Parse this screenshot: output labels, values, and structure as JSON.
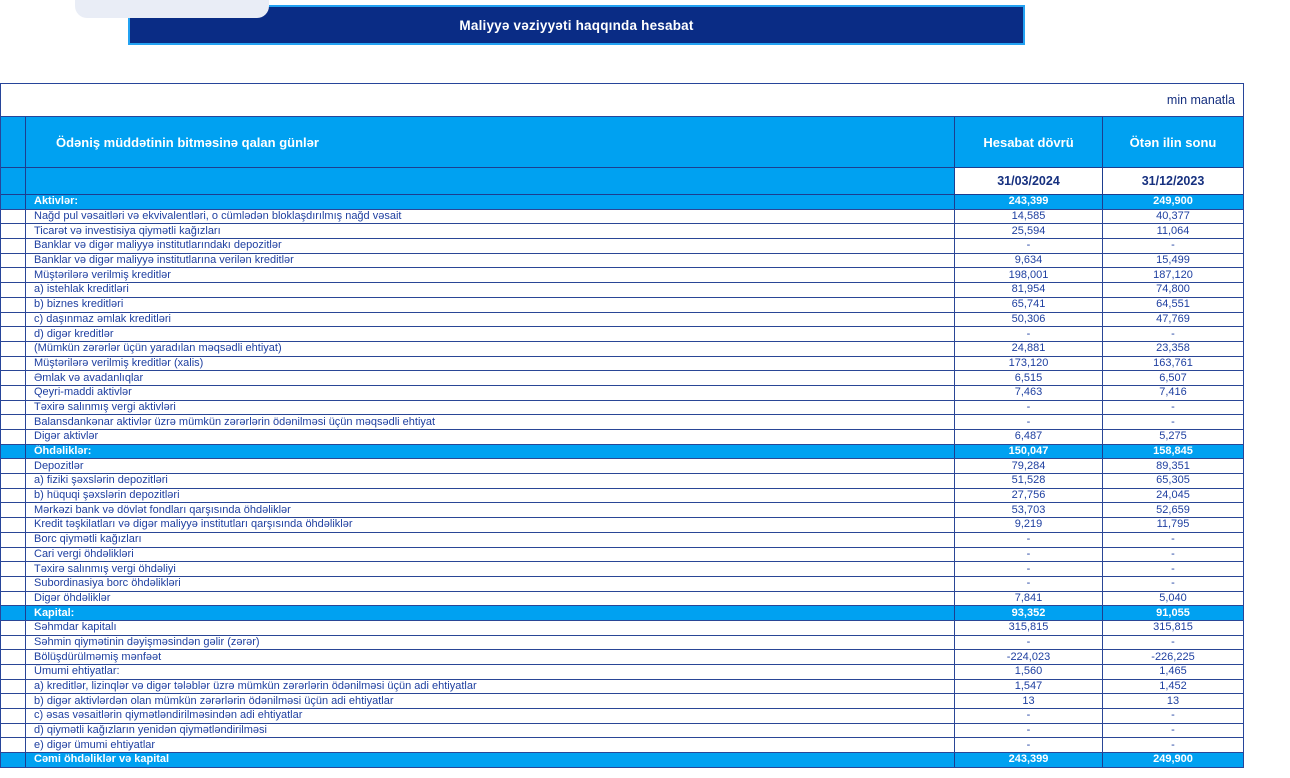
{
  "banner": {
    "title": "Maliyyə vəziyyəti haqqında hesabat"
  },
  "table": {
    "unit_label": "min manatla",
    "header": {
      "label_column": "Ödəniş müddətinin bitməsinə qalan günlər",
      "period_column": "Hesabat dövrü",
      "prev_column": "Ötən ilin sonu",
      "period_date": "31/03/2024",
      "prev_date": "31/12/2023"
    },
    "rows": [
      {
        "type": "section",
        "label": "Aktivlər:",
        "period": "243,399",
        "prev": "249,900"
      },
      {
        "type": "data",
        "label": "Nağd pul vəsaitləri və  ekvivalentləri, o cümlədən bloklaşdırılmış nağd vəsait",
        "period": "14,585",
        "prev": "40,377"
      },
      {
        "type": "data",
        "label": "Ticarət və investisiya qiymətli kağızları",
        "period": "25,594",
        "prev": "11,064"
      },
      {
        "type": "data",
        "label": "Banklar və digər maliyyə institutlarındakı depozitlər",
        "period": "-",
        "prev": "-"
      },
      {
        "type": "data",
        "label": "Banklar və digər maliyyə institutlarına verilən kreditlər",
        "period": "9,634",
        "prev": "15,499"
      },
      {
        "type": "data",
        "label": "Müştərilərə verilmiş kreditlər",
        "period": "198,001",
        "prev": "187,120"
      },
      {
        "type": "data",
        "label": "a) istehlak kreditləri",
        "period": "81,954",
        "prev": "74,800"
      },
      {
        "type": "data",
        "label": "b) biznes kreditləri",
        "period": "65,741",
        "prev": "64,551"
      },
      {
        "type": "data",
        "label": "c) daşınmaz əmlak kreditləri",
        "period": "50,306",
        "prev": "47,769"
      },
      {
        "type": "data",
        "label": "d) digər kreditlər",
        "period": "-",
        "prev": "-"
      },
      {
        "type": "data",
        "label": "(Mümkün zərərlər üçün yaradılan məqsədli ehtiyat)",
        "period": "24,881",
        "prev": "23,358"
      },
      {
        "type": "data",
        "label": "Müştərilərə verilmiş kreditlər (xalis)",
        "period": "173,120",
        "prev": "163,761"
      },
      {
        "type": "data",
        "label": "Əmlak və avadanlıqlar",
        "period": "6,515",
        "prev": "6,507"
      },
      {
        "type": "data",
        "label": "Qeyri-maddi aktivlər",
        "period": "7,463",
        "prev": "7,416"
      },
      {
        "type": "data",
        "label": "Təxirə salınmış vergi aktivləri",
        "period": "-",
        "prev": "-"
      },
      {
        "type": "data",
        "label": "Balansdankənar aktivlər üzrə mümkün zərərlərin ödənilməsi üçün məqsədli ehtiyat",
        "period": "-",
        "prev": "-"
      },
      {
        "type": "data",
        "label": "Digər aktivlər",
        "period": "6,487",
        "prev": "5,275"
      },
      {
        "type": "section",
        "label": "Öhdəliklər:",
        "period": "150,047",
        "prev": "158,845"
      },
      {
        "type": "data",
        "label": "Depozitlər",
        "period": "79,284",
        "prev": "89,351"
      },
      {
        "type": "data",
        "label": "a) fiziki şəxslərin depozitləri",
        "period": "51,528",
        "prev": "65,305"
      },
      {
        "type": "data",
        "label": "b) hüquqi şəxslərin depozitləri",
        "period": "27,756",
        "prev": "24,045"
      },
      {
        "type": "data",
        "label": "Mərkəzi bank və dövlət fondları qarşısında öhdəliklər",
        "period": "53,703",
        "prev": "52,659"
      },
      {
        "type": "data",
        "label": "Kredit təşkilatları və digər maliyyə institutları qarşısında öhdəliklər",
        "period": "9,219",
        "prev": "11,795"
      },
      {
        "type": "data",
        "label": "Borc qiymətli kağızları",
        "period": "-",
        "prev": "-"
      },
      {
        "type": "data",
        "label": "Cari vergi öhdəlikləri",
        "period": "-",
        "prev": "-"
      },
      {
        "type": "data",
        "label": "Təxirə salınmış vergi öhdəliyi",
        "period": "-",
        "prev": "-"
      },
      {
        "type": "data",
        "label": "Subordinasiya borc öhdəlikləri",
        "period": "-",
        "prev": "-"
      },
      {
        "type": "data",
        "label": "Digər öhdəliklər",
        "period": "7,841",
        "prev": "5,040"
      },
      {
        "type": "section",
        "label": "Kapital:",
        "period": "93,352",
        "prev": "91,055"
      },
      {
        "type": "data",
        "label": "Səhmdar kapitalı",
        "period": "315,815",
        "prev": "315,815"
      },
      {
        "type": "data",
        "label": "Səhmin qiymətinin dəyişməsindən gəlir (zərər)",
        "period": "-",
        "prev": "-"
      },
      {
        "type": "data",
        "label": "Bölüşdürülməmiş mənfəət",
        "period": "-224,023",
        "prev": "-226,225"
      },
      {
        "type": "data",
        "label": "Ümumi ehtiyatlar:",
        "period": "1,560",
        "prev": "1,465"
      },
      {
        "type": "data",
        "label": "a) kreditlər, lizinqlər və digər tələblər üzrə mümkün zərərlərin ödənilməsi üçün adi ehtiyatlar",
        "period": "1,547",
        "prev": "1,452"
      },
      {
        "type": "data",
        "label": "b) digər aktivlərdən olan mümkün zərərlərin ödənilməsi üçün adi ehtiyatlar",
        "period": "13",
        "prev": "13"
      },
      {
        "type": "data",
        "label": "c) əsas vəsaitlərin qiymətləndirilməsindən adi ehtiyatlar",
        "period": "-",
        "prev": "-"
      },
      {
        "type": "data",
        "label": "d) qiymətli kağızların yenidən qiymətləndirilməsi",
        "period": "-",
        "prev": "-"
      },
      {
        "type": "data",
        "label": "e) digər ümumi ehtiyatlar",
        "period": "-",
        "prev": "-"
      },
      {
        "type": "section",
        "label": "Cəmi öhdəliklər və kapital",
        "period": "243,399",
        "prev": "249,900"
      }
    ]
  },
  "colors": {
    "accent_blue": "#00A1F1",
    "banner_navy": "#0A2C85",
    "banner_border": "#23A2F2",
    "text_navy": "#1E3FA0",
    "grid_border": "#2A4696"
  }
}
